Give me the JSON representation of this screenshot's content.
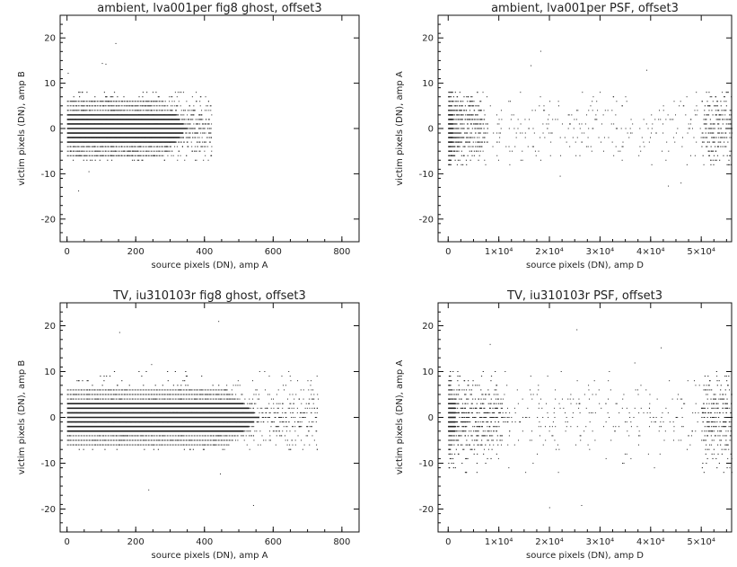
{
  "chart_data": [
    {
      "type": "scatter",
      "title": "ambient, lva001per fig8 ghost, offset3",
      "xlabel": "source pixels (DN), amp A",
      "ylabel": "victim pixels (DN), amp B",
      "xlim": [
        -20,
        850
      ],
      "ylim": [
        -25,
        25
      ],
      "xticks": [
        0,
        200,
        400,
        600,
        800
      ],
      "xtick_labels": [
        "0",
        "200",
        "400",
        "600",
        "800"
      ],
      "yticks": [
        -20,
        -10,
        0,
        10,
        20
      ],
      "ytick_labels": [
        "-20",
        "-10",
        "0",
        "10",
        "20"
      ],
      "points_color": "#222222",
      "distribution": {
        "x_dense_max": 350,
        "x_sparse_max": 420,
        "y_levels_min": -7,
        "y_levels_max": 8,
        "right_cluster": false
      }
    },
    {
      "type": "scatter",
      "title": "ambient, lva001per PSF, offset3",
      "xlabel": "source pixels (DN), amp D",
      "ylabel": "victim pixels (DN), amp A",
      "xlim": [
        -2000,
        56000
      ],
      "ylim": [
        -25,
        25
      ],
      "xticks": [
        0,
        10000,
        20000,
        30000,
        40000,
        50000
      ],
      "xtick_labels": [
        "0",
        "1×10⁴",
        "2×10⁴",
        "3×10⁴",
        "4×10⁴",
        "5×10⁴"
      ],
      "yticks": [
        -20,
        -10,
        0,
        10,
        20
      ],
      "ytick_labels": [
        "-20",
        "-10",
        "0",
        "10",
        "20"
      ],
      "points_color": "#222222",
      "distribution": {
        "x_dense_max": 4000,
        "x_sparse_max": 56000,
        "y_levels_min": -8,
        "y_levels_max": 8,
        "right_cluster": true
      }
    },
    {
      "type": "scatter",
      "title": "TV, iu310103r fig8 ghost, offset3",
      "xlabel": "source pixels (DN), amp A",
      "ylabel": "victim pixels (DN), amp B",
      "xlim": [
        -20,
        850
      ],
      "ylim": [
        -25,
        25
      ],
      "xticks": [
        0,
        200,
        400,
        600,
        800
      ],
      "xtick_labels": [
        "0",
        "200",
        "400",
        "600",
        "800"
      ],
      "yticks": [
        -20,
        -10,
        0,
        10,
        20
      ],
      "ytick_labels": [
        "-20",
        "-10",
        "0",
        "10",
        "20"
      ],
      "points_color": "#222222",
      "distribution": {
        "x_dense_max": 560,
        "x_sparse_max": 730,
        "y_levels_min": -7,
        "y_levels_max": 10,
        "right_cluster": false
      }
    },
    {
      "type": "scatter",
      "title": "TV, iu310103r PSF, offset3",
      "xlabel": "source pixels (DN), amp D",
      "ylabel": "victim pixels (DN), amp A",
      "xlim": [
        -2000,
        56000
      ],
      "ylim": [
        -25,
        25
      ],
      "xticks": [
        0,
        10000,
        20000,
        30000,
        40000,
        50000
      ],
      "xtick_labels": [
        "0",
        "1×10⁴",
        "2×10⁴",
        "3×10⁴",
        "4×10⁴",
        "5×10⁴"
      ],
      "yticks": [
        -20,
        -10,
        0,
        10,
        20
      ],
      "ytick_labels": [
        "-20",
        "-10",
        "0",
        "10",
        "20"
      ],
      "points_color": "#222222",
      "distribution": {
        "x_dense_max": 6000,
        "x_sparse_max": 56000,
        "y_levels_min": -12,
        "y_levels_max": 10,
        "right_cluster": true
      }
    }
  ]
}
